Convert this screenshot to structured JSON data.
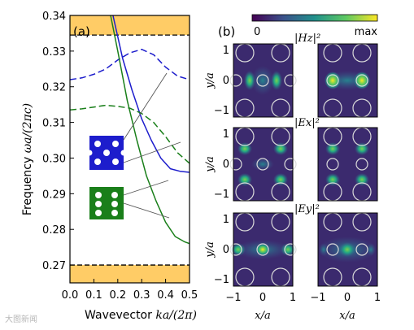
{
  "colorbar": {
    "min_label": "0",
    "max_label": "max"
  },
  "left_panel": {
    "panel_label": "(a)",
    "ylabel_word": "Frequency",
    "ylabel_math": "ωa/(2πc)",
    "xlabel_word": "Wavevector",
    "xlabel_math": "ka/(2π)"
  },
  "right_panel": {
    "panel_label": "(b)",
    "row_labels": [
      "|Hz|²",
      "|Ex|²",
      "|Ey|²"
    ],
    "ylabel": "y/a",
    "xlabel": "x/a",
    "yticks": [
      "1",
      "0",
      "−1"
    ],
    "xticks": [
      "−1",
      "0",
      "1"
    ]
  },
  "watermark": "大图新闻",
  "colors": {
    "gap": "#ffcc66",
    "blue": "#1d1dcc",
    "green": "#1a7f1a",
    "field_bg": "#3b2a6e"
  },
  "chart_data": {
    "type": "line",
    "xlim": [
      0.0,
      0.5
    ],
    "ylim": [
      0.265,
      0.34
    ],
    "x_ticks": [
      "0.0",
      "0.1",
      "0.2",
      "0.3",
      "0.4",
      "0.5"
    ],
    "y_ticks": [
      "0.27",
      "0.28",
      "0.29",
      "0.30",
      "0.31",
      "0.32",
      "0.33",
      "0.34"
    ],
    "band_gaps": [
      [
        0.265,
        0.27
      ],
      [
        0.3345,
        0.34
      ]
    ],
    "series": [
      {
        "color": "blue",
        "style": "solid",
        "x": [
          0.18,
          0.22,
          0.26,
          0.3,
          0.34,
          0.38,
          0.42,
          0.46,
          0.5
        ],
        "y": [
          0.34,
          0.328,
          0.319,
          0.311,
          0.305,
          0.3,
          0.297,
          0.2963,
          0.296
        ]
      },
      {
        "color": "blue",
        "style": "dashed",
        "x": [
          0.0,
          0.05,
          0.1,
          0.15,
          0.2,
          0.25,
          0.3,
          0.35,
          0.4,
          0.45,
          0.5
        ],
        "y": [
          0.322,
          0.3225,
          0.3235,
          0.325,
          0.3275,
          0.3295,
          0.3305,
          0.329,
          0.3255,
          0.323,
          0.322
        ]
      },
      {
        "color": "green",
        "style": "solid",
        "x": [
          0.17,
          0.2,
          0.24,
          0.28,
          0.32,
          0.36,
          0.4,
          0.44,
          0.48,
          0.5
        ],
        "y": [
          0.34,
          0.33,
          0.316,
          0.305,
          0.295,
          0.288,
          0.282,
          0.278,
          0.2765,
          0.276
        ]
      },
      {
        "color": "green",
        "style": "dashed",
        "x": [
          0.0,
          0.05,
          0.1,
          0.15,
          0.2,
          0.25,
          0.3,
          0.35,
          0.4,
          0.45,
          0.5
        ],
        "y": [
          0.3135,
          0.3138,
          0.3143,
          0.3148,
          0.3145,
          0.314,
          0.3125,
          0.31,
          0.306,
          0.3015,
          0.2985
        ]
      }
    ]
  }
}
